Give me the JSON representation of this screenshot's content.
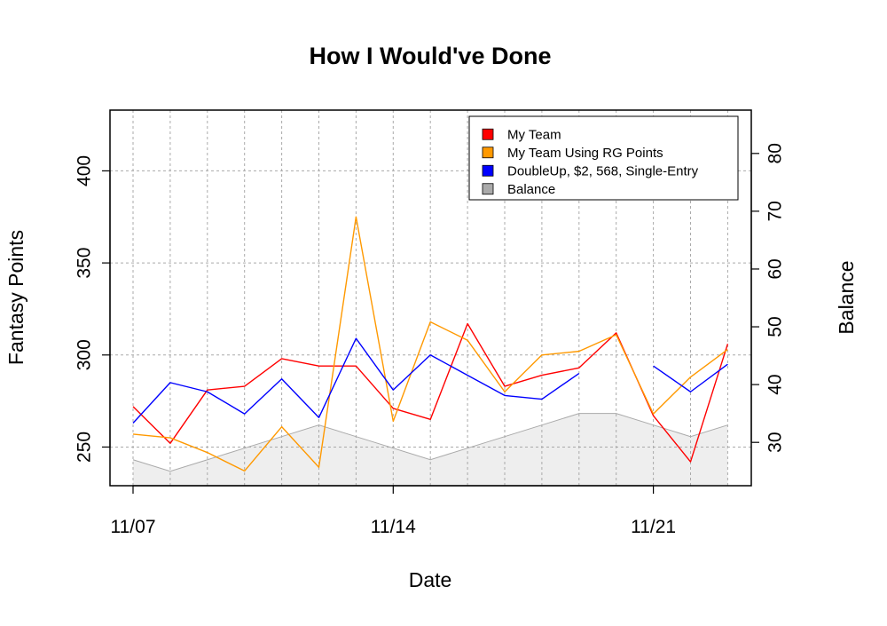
{
  "chart_data": {
    "type": "line",
    "title": "How I Would've Done",
    "xlabel": "Date",
    "ylabel": "Fantasy Points",
    "ylabel_right": "Balance",
    "x": [
      "11/07",
      "11/08",
      "11/09",
      "11/10",
      "11/11",
      "11/12",
      "11/13",
      "11/14",
      "11/15",
      "11/16",
      "11/17",
      "11/18",
      "11/19",
      "11/20",
      "11/21",
      "11/22",
      "11/23"
    ],
    "x_tick_labels": [
      "11/07",
      "11/14",
      "11/21"
    ],
    "y_ticks": [
      250,
      300,
      350,
      400
    ],
    "y2_ticks": [
      30,
      40,
      50,
      60,
      70,
      80
    ],
    "ylim": [
      229,
      433
    ],
    "y2lim": [
      22.5,
      87.5
    ],
    "grid": true,
    "legend_position": "top-right",
    "series": [
      {
        "name": "My Team",
        "color": "#ff0000",
        "axis": "left",
        "values": [
          272,
          252,
          281,
          283,
          298,
          294,
          294,
          271,
          265,
          317,
          283,
          289,
          293,
          312,
          267,
          242,
          306
        ]
      },
      {
        "name": "My Team Using RG Points",
        "color": "#ff9900",
        "axis": "left",
        "values": [
          257,
          255,
          247,
          237,
          261,
          239,
          375,
          264,
          318,
          308,
          280,
          300,
          302,
          311,
          268,
          288,
          303
        ]
      },
      {
        "name": "DoubleUp, $2, 568, Single-Entry",
        "color": "#0000ff",
        "axis": "left",
        "values": [
          263,
          285,
          280,
          268,
          287,
          266,
          309,
          281,
          300,
          289,
          278,
          276,
          290,
          null,
          294,
          280,
          295
        ]
      },
      {
        "name": "Balance",
        "color": "#aaaaaa",
        "fill": "#eeeeee",
        "axis": "right",
        "type": "area",
        "values": [
          27,
          25,
          27,
          29,
          31,
          33,
          31,
          29,
          27,
          29,
          31,
          33,
          35,
          35,
          33,
          31,
          33
        ]
      }
    ]
  }
}
